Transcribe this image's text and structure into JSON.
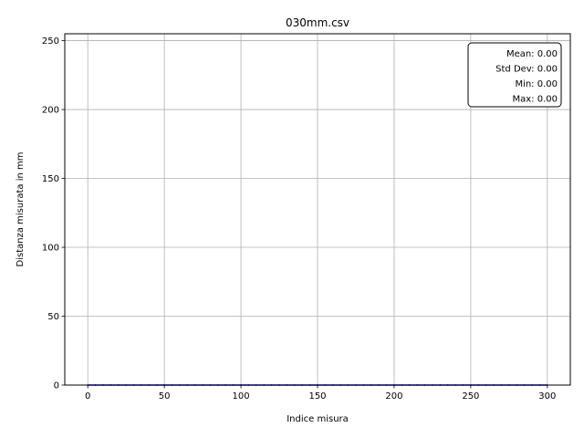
{
  "chart_data": {
    "type": "line",
    "title": "030mm.csv",
    "xlabel": "Indice misura",
    "ylabel": "Distanza misurata in mm",
    "xlim": [
      -15,
      315
    ],
    "ylim": [
      0,
      255
    ],
    "xticks": [
      0,
      50,
      100,
      150,
      200,
      250,
      300
    ],
    "yticks": [
      0,
      50,
      100,
      150,
      200,
      250
    ],
    "grid": true,
    "series": [
      {
        "color": "#0000ff",
        "x_start": 0,
        "x_end": 300,
        "constant_value": 0
      }
    ],
    "stats_box": {
      "position": "top-right",
      "lines": [
        "Mean: 0.00",
        "Std Dev: 0.00",
        "Min: 0.00",
        "Max: 0.00"
      ]
    }
  }
}
